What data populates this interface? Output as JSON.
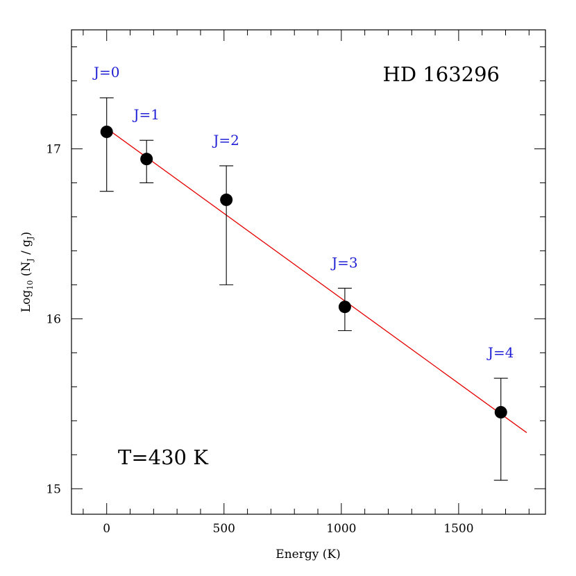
{
  "chart_data": {
    "type": "scatter",
    "title": "HD 163296",
    "annotation": "T=430 K",
    "xlabel": "Energy (K)",
    "ylabel": {
      "prefix": "Log",
      "sub1": "10",
      "mid": " (N",
      "sub2": "J",
      "mid2": " / g",
      "sub3": "J",
      "suffix": ")"
    },
    "xlim": [
      -150,
      1870
    ],
    "ylim": [
      14.85,
      17.7
    ],
    "xticks": [
      0,
      500,
      1000,
      1500
    ],
    "yticks": [
      15,
      16,
      17
    ],
    "x_minor_step": 100,
    "y_minor_step": 0.2,
    "points": [
      {
        "label": "J=0",
        "x": 0,
        "y": 17.1,
        "ylow": 16.75,
        "yhigh": 17.3
      },
      {
        "label": "J=1",
        "x": 170,
        "y": 16.94,
        "ylow": 16.8,
        "yhigh": 17.05
      },
      {
        "label": "J=2",
        "x": 510,
        "y": 16.7,
        "ylow": 16.2,
        "yhigh": 16.9
      },
      {
        "label": "J=3",
        "x": 1015,
        "y": 16.07,
        "ylow": 15.93,
        "yhigh": 16.18
      },
      {
        "label": "J=4",
        "x": 1680,
        "y": 15.45,
        "ylow": 15.05,
        "yhigh": 15.65
      }
    ],
    "fit_line": {
      "x": [
        0,
        1790
      ],
      "y": [
        17.12,
        15.33
      ]
    },
    "colors": {
      "points": "#000000",
      "fit": "#e60000",
      "labels": "#1f1fd6"
    }
  }
}
